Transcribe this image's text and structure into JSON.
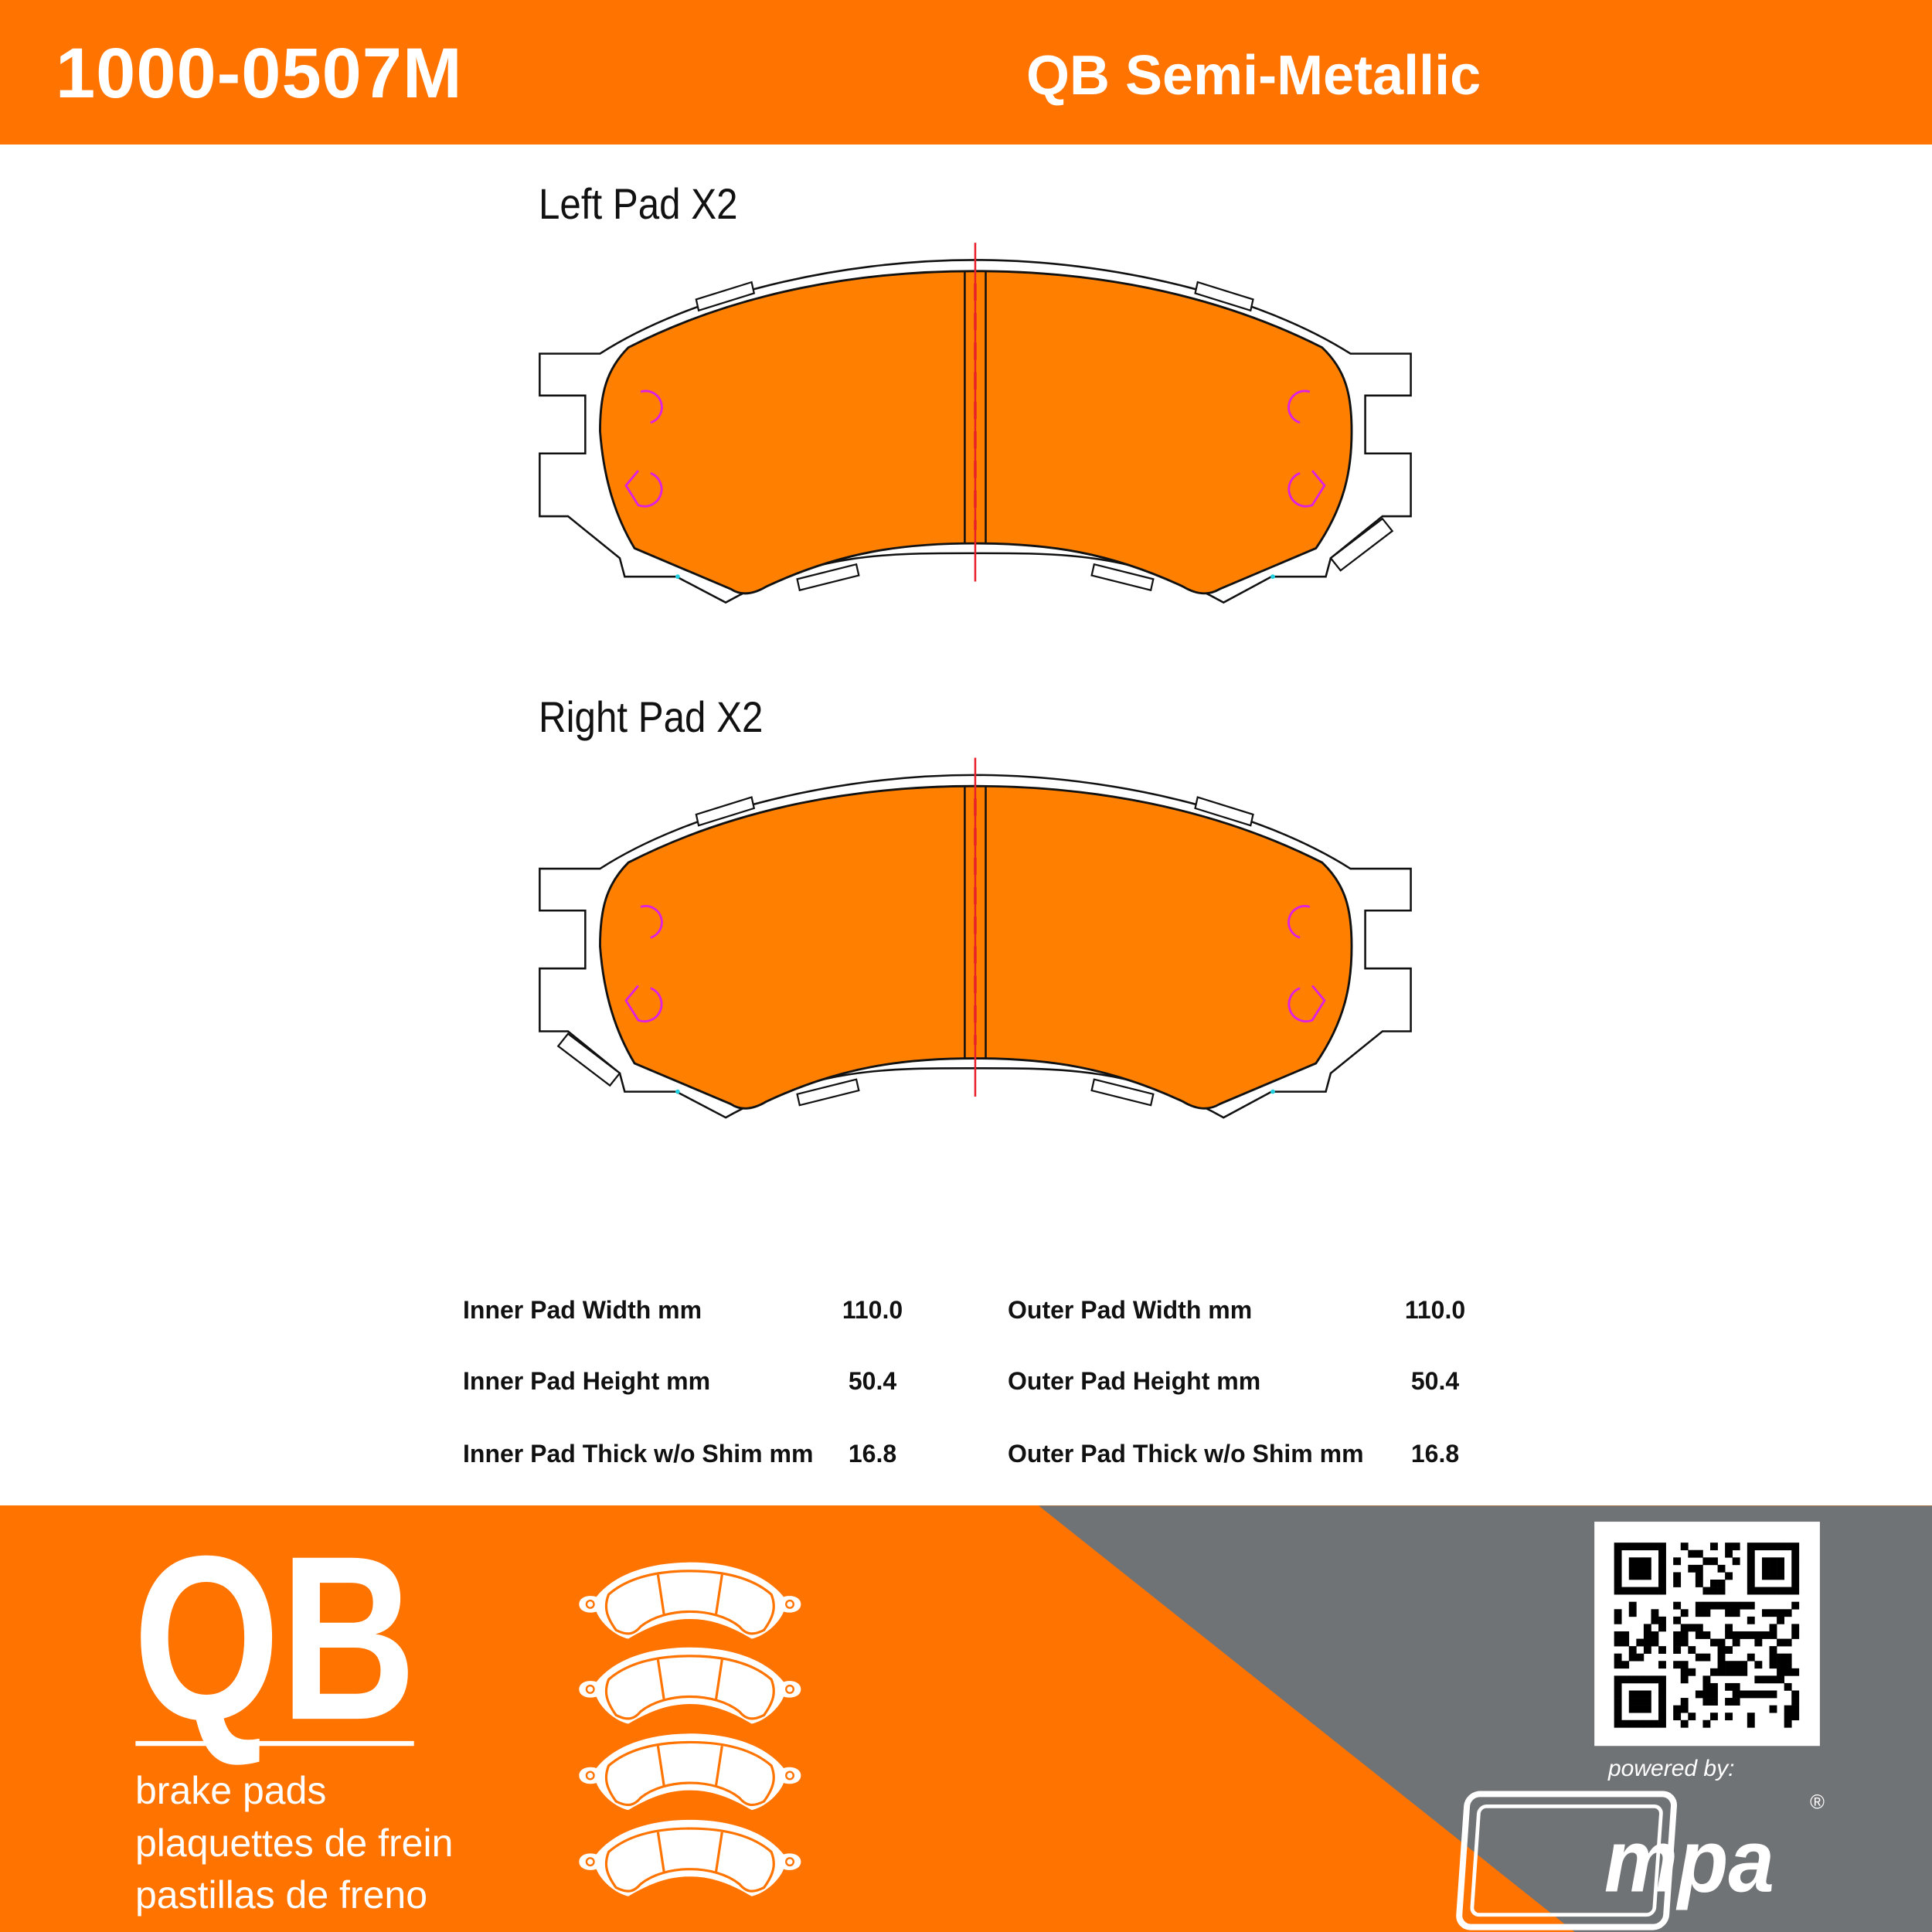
{
  "header": {
    "part_number": "1000-0507M",
    "product_line": "QB Semi-Metallic"
  },
  "pads": [
    {
      "title": "Left  Pad X2"
    },
    {
      "title": "Right Pad  X2"
    }
  ],
  "specs": {
    "inner": [
      {
        "label": "Inner Pad Width mm",
        "value": "110.0"
      },
      {
        "label": "Inner Pad Height mm",
        "value": "50.4"
      },
      {
        "label": "Inner Pad Thick w/o Shim mm",
        "value": "16.8"
      }
    ],
    "outer": [
      {
        "label": "Outer Pad Width mm",
        "value": "110.0"
      },
      {
        "label": "Outer Pad Height mm",
        "value": "50.4"
      },
      {
        "label": "Outer Pad Thick w/o Shim mm",
        "value": "16.8"
      }
    ]
  },
  "footer": {
    "brand": "QB",
    "taglines": [
      "brake pads",
      "plaquettes de frein",
      "pastillas de freno"
    ],
    "powered_by": "powered by:",
    "partner_logo": "mpa",
    "registered": "®"
  },
  "colors": {
    "brand_orange": "#ff7300",
    "pad_fill": "#ff8000",
    "footer_gray": "#707376",
    "centerline": "#e8202a",
    "marker": "#e020e0"
  }
}
